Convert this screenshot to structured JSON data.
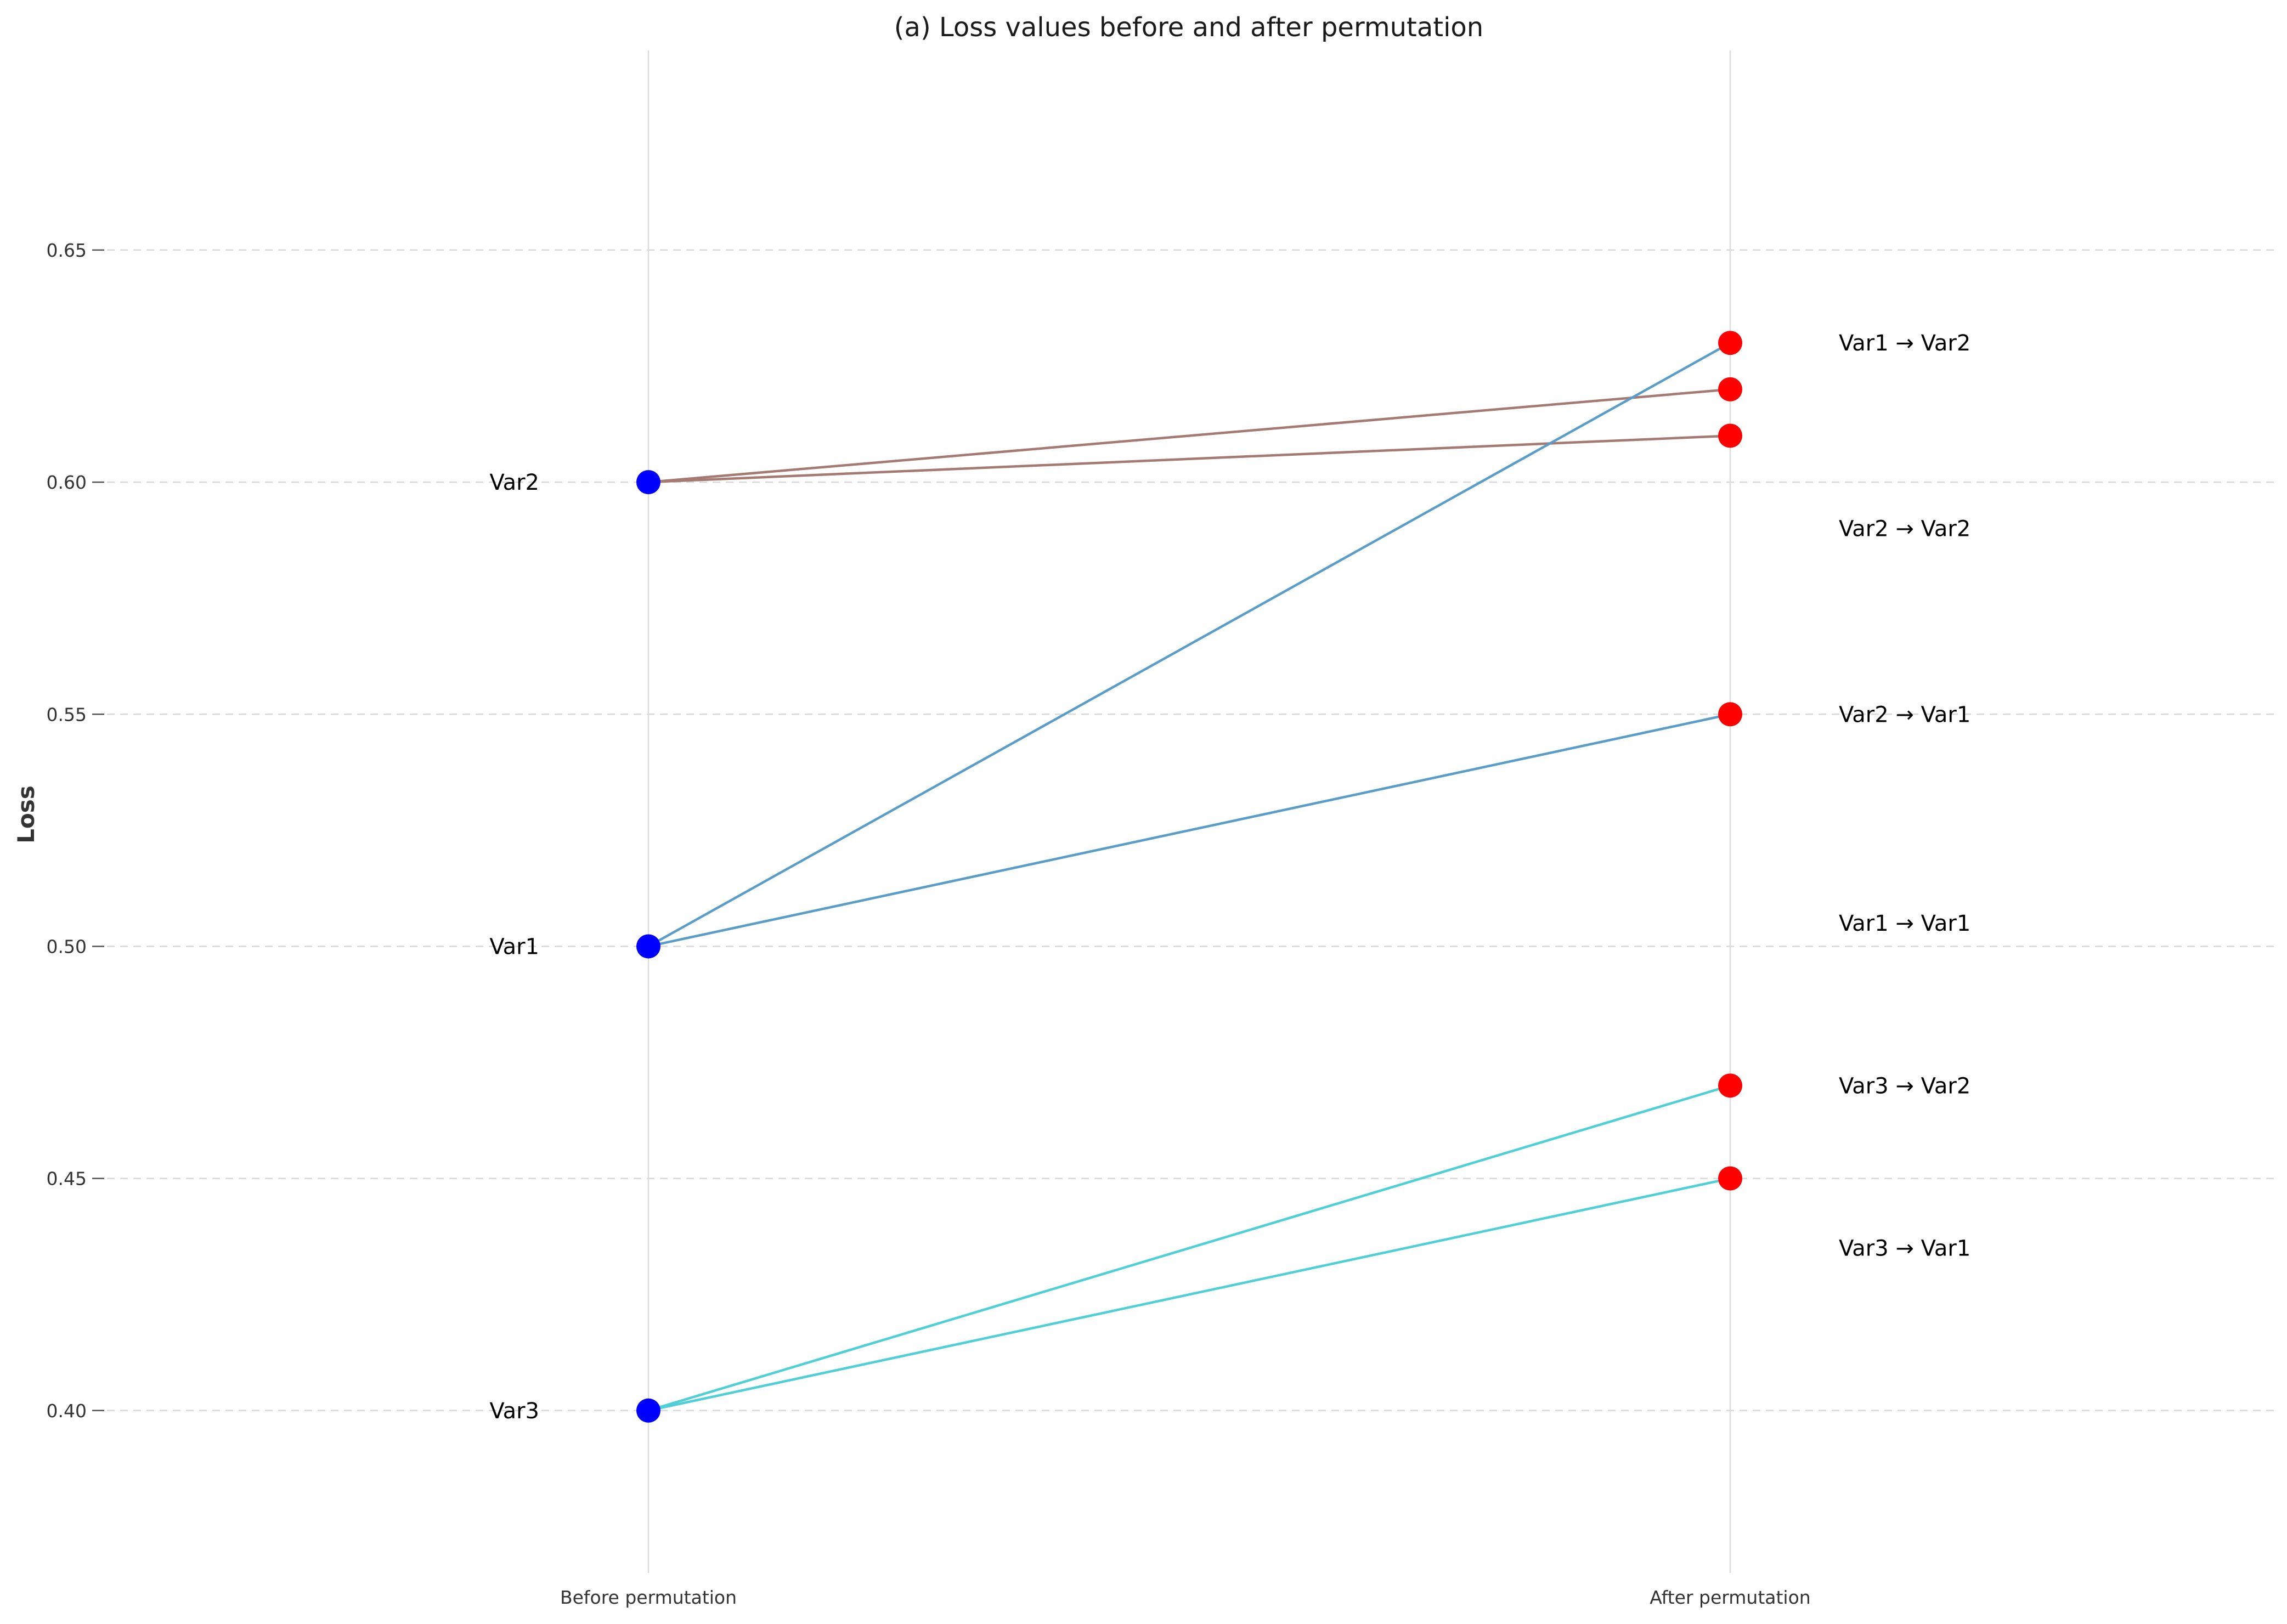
{
  "chart_data": {
    "type": "line",
    "title": "(a) Loss values before and after permutation",
    "xlabel": "",
    "ylabel": "Loss",
    "x_categories": [
      "Before permutation",
      "After permutation"
    ],
    "ylim": [
      0.365,
      0.693
    ],
    "yticks": [
      "0.40",
      "0.45",
      "0.50",
      "0.55",
      "0.60",
      "0.65"
    ],
    "grid": "horizontal dashed",
    "before": [
      {
        "name": "Var2",
        "value": 0.6
      },
      {
        "name": "Var1",
        "value": 0.5
      },
      {
        "name": "Var3",
        "value": 0.4
      }
    ],
    "connections": [
      {
        "from": "Var2",
        "from_value": 0.6,
        "to_value": 0.62,
        "color": "#a57a72"
      },
      {
        "from": "Var2",
        "from_value": 0.6,
        "to_value": 0.61,
        "color": "#a57a72"
      },
      {
        "from": "Var1",
        "from_value": 0.5,
        "to_value": 0.63,
        "color": "#5a9ec8"
      },
      {
        "from": "Var1",
        "from_value": 0.5,
        "to_value": 0.55,
        "color": "#5a9ec8"
      },
      {
        "from": "Var3",
        "from_value": 0.4,
        "to_value": 0.47,
        "color": "#4fcfd6"
      },
      {
        "from": "Var3",
        "from_value": 0.4,
        "to_value": 0.45,
        "color": "#4fcfd6"
      }
    ],
    "after_points": [
      0.63,
      0.62,
      0.61,
      0.55,
      0.47,
      0.45
    ],
    "after_labels": [
      {
        "text": "Var1 → Var2",
        "value": 0.63
      },
      {
        "text": "Var2 → Var2",
        "value": 0.59
      },
      {
        "text": "Var2 → Var1",
        "value": 0.55
      },
      {
        "text": "Var1 → Var1",
        "value": 0.505
      },
      {
        "text": "Var3 → Var2",
        "value": 0.47
      },
      {
        "text": "Var3 → Var1",
        "value": 0.435
      }
    ],
    "colors": {
      "before_marker": "#0000ff",
      "after_marker": "#ff0000"
    }
  }
}
